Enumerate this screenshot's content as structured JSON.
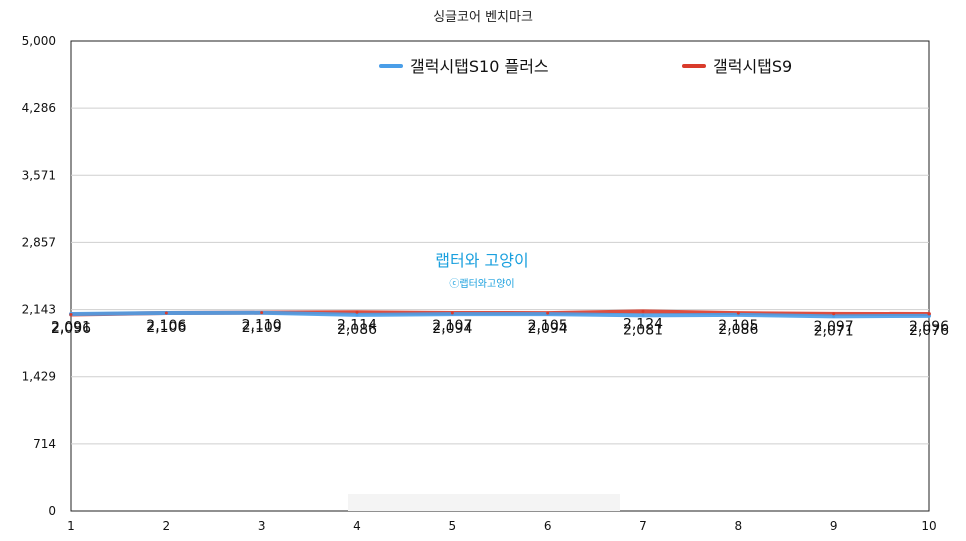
{
  "chart_data": {
    "type": "line",
    "title": "싱글코어 벤치마크",
    "xlabel": "",
    "ylabel": "",
    "x": [
      1,
      2,
      3,
      4,
      5,
      6,
      7,
      8,
      9,
      10
    ],
    "ylim": [
      0,
      5000
    ],
    "yticks": [
      "0",
      "714",
      "1,429",
      "2,143",
      "2,857",
      "3,571",
      "4,286",
      "5,000"
    ],
    "grid": true,
    "legend_position": "top-center",
    "series": [
      {
        "name": "갤럭시탭S10 플러스",
        "color": "#4a9ee8",
        "values": [
          2096,
          2106,
          2109,
          2086,
          2094,
          2094,
          2081,
          2086,
          2071,
          2076
        ],
        "labels": [
          "2,096",
          "2,106",
          "2,109",
          "2,086",
          "2,094",
          "2,094",
          "2,081",
          "2,086",
          "2,071",
          "2,076"
        ]
      },
      {
        "name": "갤럭시탭S9",
        "color": "#d93b2b",
        "values": [
          2091,
          2106,
          2110,
          2114,
          2107,
          2105,
          2124,
          2105,
          2097,
          2096
        ],
        "labels": [
          "2,091",
          "2,106",
          "2,110",
          "2,114",
          "2,107",
          "2,105",
          "2,124",
          "2,105",
          "2,097",
          "2,096"
        ]
      }
    ]
  },
  "watermark": {
    "main": "랩터와 고양이",
    "sub": "ⓒ랩터와고양이"
  }
}
